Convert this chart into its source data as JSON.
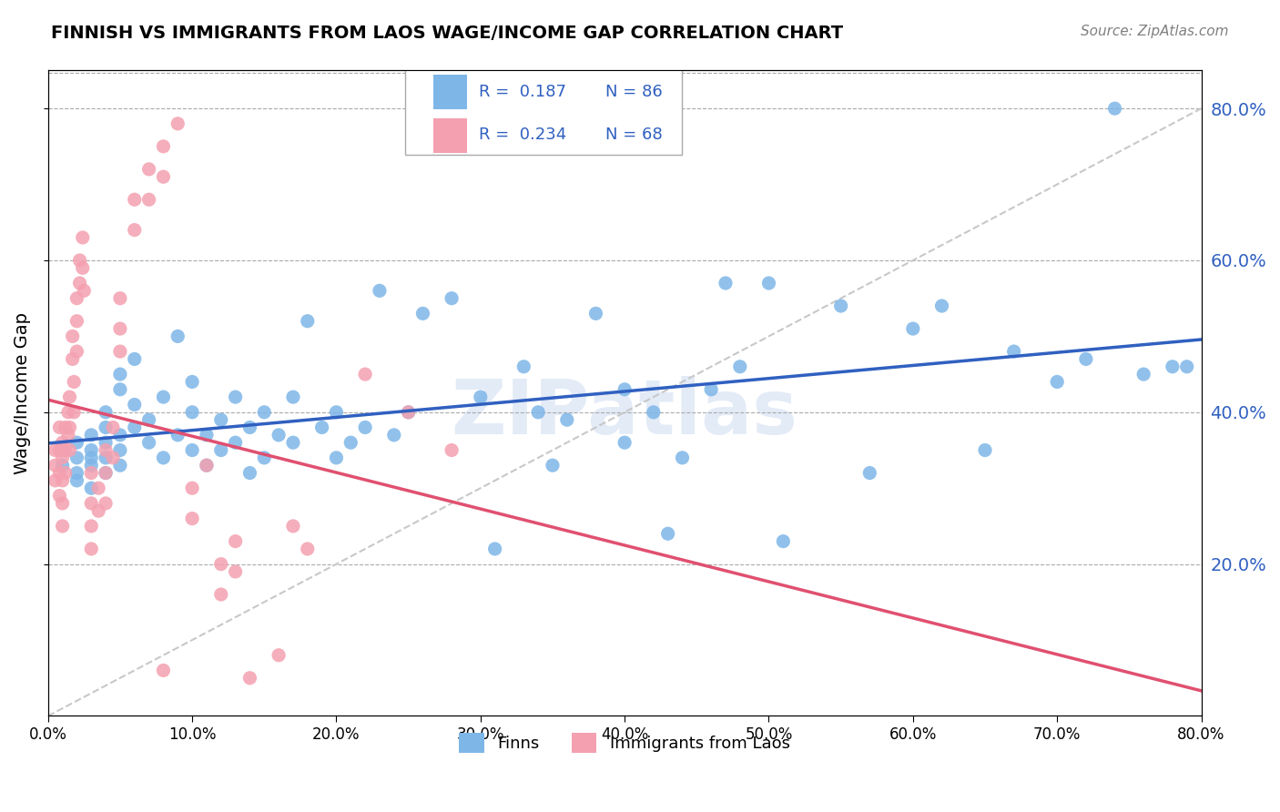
{
  "title": "FINNISH VS IMMIGRANTS FROM LAOS WAGE/INCOME GAP CORRELATION CHART",
  "source": "Source: ZipAtlas.com",
  "xlabel": "",
  "ylabel": "Wage/Income Gap",
  "xmin": 0.0,
  "xmax": 0.8,
  "ymin": 0.0,
  "ymax": 0.85,
  "yticks": [
    0.2,
    0.4,
    0.6,
    0.8
  ],
  "xticks": [
    0.0,
    0.1,
    0.2,
    0.3,
    0.4,
    0.5,
    0.6,
    0.7,
    0.8
  ],
  "xtick_labels": [
    "0.0%",
    "10.0%",
    "20.0%",
    "30.0%",
    "40.0%",
    "50.0%",
    "60.0%",
    "70.0%",
    "80.0%"
  ],
  "ytick_labels": [
    "20.0%",
    "40.0%",
    "60.0%",
    "80.0%"
  ],
  "legend_entry1": "R =  0.187   N = 86",
  "legend_entry2": "R =  0.234   N = 68",
  "color_blue": "#7EB6E8",
  "color_pink": "#F4A0B0",
  "line_blue": "#3060C0",
  "line_pink": "#E05070",
  "diag_color": "#C8C8C8",
  "watermark": "ZIPatlas",
  "watermark_color": "#C8D8F0",
  "finns_x": [
    0.01,
    0.01,
    0.02,
    0.02,
    0.02,
    0.02,
    0.03,
    0.03,
    0.03,
    0.03,
    0.03,
    0.04,
    0.04,
    0.04,
    0.04,
    0.04,
    0.05,
    0.05,
    0.05,
    0.05,
    0.05,
    0.06,
    0.06,
    0.06,
    0.07,
    0.07,
    0.08,
    0.08,
    0.09,
    0.09,
    0.1,
    0.1,
    0.1,
    0.11,
    0.11,
    0.12,
    0.12,
    0.13,
    0.13,
    0.14,
    0.14,
    0.15,
    0.15,
    0.16,
    0.17,
    0.17,
    0.18,
    0.19,
    0.2,
    0.2,
    0.21,
    0.22,
    0.23,
    0.24,
    0.25,
    0.26,
    0.28,
    0.3,
    0.31,
    0.33,
    0.34,
    0.35,
    0.36,
    0.38,
    0.4,
    0.4,
    0.42,
    0.43,
    0.44,
    0.46,
    0.47,
    0.48,
    0.5,
    0.51,
    0.55,
    0.57,
    0.6,
    0.62,
    0.65,
    0.67,
    0.7,
    0.72,
    0.74,
    0.76,
    0.78,
    0.79
  ],
  "finns_y": [
    0.35,
    0.33,
    0.34,
    0.32,
    0.36,
    0.31,
    0.35,
    0.33,
    0.37,
    0.34,
    0.3,
    0.36,
    0.34,
    0.32,
    0.38,
    0.4,
    0.35,
    0.43,
    0.37,
    0.33,
    0.45,
    0.38,
    0.41,
    0.47,
    0.36,
    0.39,
    0.42,
    0.34,
    0.37,
    0.5,
    0.35,
    0.4,
    0.44,
    0.37,
    0.33,
    0.39,
    0.35,
    0.42,
    0.36,
    0.38,
    0.32,
    0.4,
    0.34,
    0.37,
    0.42,
    0.36,
    0.52,
    0.38,
    0.4,
    0.34,
    0.36,
    0.38,
    0.56,
    0.37,
    0.4,
    0.53,
    0.55,
    0.42,
    0.22,
    0.46,
    0.4,
    0.33,
    0.39,
    0.53,
    0.43,
    0.36,
    0.4,
    0.24,
    0.34,
    0.43,
    0.57,
    0.46,
    0.57,
    0.23,
    0.54,
    0.32,
    0.51,
    0.54,
    0.35,
    0.48,
    0.44,
    0.47,
    0.8,
    0.45,
    0.46,
    0.46
  ],
  "laos_x": [
    0.005,
    0.005,
    0.005,
    0.008,
    0.008,
    0.008,
    0.008,
    0.01,
    0.01,
    0.01,
    0.01,
    0.01,
    0.012,
    0.012,
    0.012,
    0.014,
    0.014,
    0.015,
    0.015,
    0.015,
    0.017,
    0.017,
    0.018,
    0.018,
    0.02,
    0.02,
    0.02,
    0.022,
    0.022,
    0.024,
    0.024,
    0.025,
    0.03,
    0.03,
    0.03,
    0.03,
    0.035,
    0.035,
    0.04,
    0.04,
    0.04,
    0.045,
    0.045,
    0.05,
    0.05,
    0.05,
    0.06,
    0.06,
    0.07,
    0.07,
    0.08,
    0.08,
    0.09,
    0.1,
    0.1,
    0.11,
    0.12,
    0.12,
    0.13,
    0.13,
    0.14,
    0.16,
    0.17,
    0.18,
    0.22,
    0.25,
    0.28,
    0.08
  ],
  "laos_y": [
    0.35,
    0.33,
    0.31,
    0.38,
    0.35,
    0.32,
    0.29,
    0.36,
    0.34,
    0.31,
    0.28,
    0.25,
    0.38,
    0.35,
    0.32,
    0.4,
    0.37,
    0.42,
    0.38,
    0.35,
    0.5,
    0.47,
    0.44,
    0.4,
    0.55,
    0.52,
    0.48,
    0.6,
    0.57,
    0.63,
    0.59,
    0.56,
    0.32,
    0.28,
    0.25,
    0.22,
    0.3,
    0.27,
    0.35,
    0.32,
    0.28,
    0.38,
    0.34,
    0.55,
    0.51,
    0.48,
    0.68,
    0.64,
    0.72,
    0.68,
    0.75,
    0.71,
    0.78,
    0.3,
    0.26,
    0.33,
    0.2,
    0.16,
    0.23,
    0.19,
    0.05,
    0.08,
    0.25,
    0.22,
    0.45,
    0.4,
    0.35,
    0.06
  ]
}
